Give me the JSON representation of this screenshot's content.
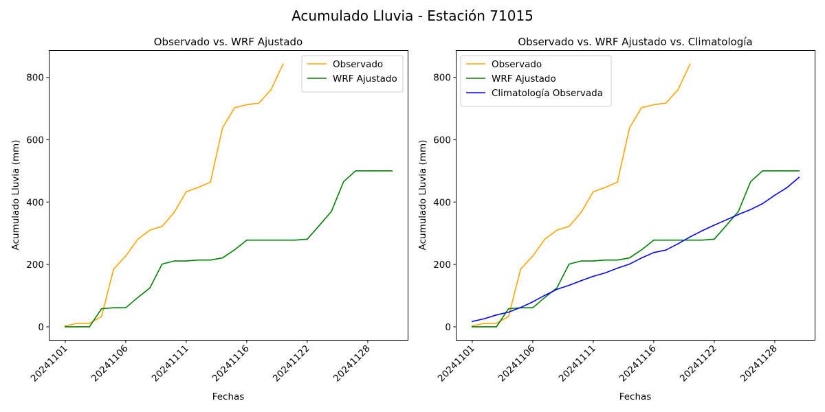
{
  "figure": {
    "suptitle": "Acumulado Lluvia - Estación 71015"
  },
  "chart_data": [
    {
      "type": "line",
      "title": "Observado vs. WRF Ajustado",
      "xlabel": "Fechas",
      "ylabel": "Acumulado Lluvia (mm)",
      "ylim": [
        -42,
        885
      ],
      "y_ticks": [
        0,
        200,
        400,
        600,
        800
      ],
      "x_tick_labels": [
        "20241101",
        "20241106",
        "20241111",
        "20241116",
        "20241122",
        "20241128"
      ],
      "x_tick_days": [
        1,
        6,
        11,
        16,
        21,
        26
      ],
      "x_range_days": [
        -0.3,
        29.3
      ],
      "legend_position": "upper right",
      "series": [
        {
          "name": "Observado",
          "color": "#FFA500",
          "x": [
            1,
            2,
            3,
            4,
            5,
            6,
            7,
            8,
            9,
            10,
            11,
            12,
            13,
            14,
            15,
            16,
            17,
            18,
            19
          ],
          "values": [
            3,
            11,
            11,
            33,
            185,
            227,
            281,
            310,
            322,
            367,
            433,
            447,
            464,
            638,
            703,
            712,
            717,
            760,
            842
          ]
        },
        {
          "name": "WRF Ajustado",
          "color": "#008000",
          "x": [
            1,
            2,
            3,
            4,
            5,
            6,
            7,
            8,
            9,
            10,
            11,
            12,
            13,
            14,
            15,
            16,
            17,
            18,
            19,
            20,
            21,
            22,
            23,
            24,
            25,
            26,
            27,
            28
          ],
          "values": [
            0,
            0,
            0,
            58,
            61,
            61,
            94,
            125,
            201,
            211,
            211,
            214,
            214,
            221,
            247,
            278,
            278,
            278,
            278,
            278,
            281,
            325,
            370,
            465,
            500,
            500,
            500,
            500
          ]
        }
      ]
    },
    {
      "type": "line",
      "title": "Observado vs. WRF Ajustado vs. Climatología",
      "xlabel": "Fechas",
      "ylabel": "Acumulado Lluvia (mm)",
      "ylim": [
        -42,
        885
      ],
      "y_ticks": [
        0,
        200,
        400,
        600,
        800
      ],
      "x_tick_labels": [
        "20241101",
        "20241106",
        "20241111",
        "20241116",
        "20241122",
        "20241128"
      ],
      "x_tick_days": [
        1,
        6,
        11,
        16,
        21,
        26
      ],
      "x_range_days": [
        -0.3,
        29.3
      ],
      "legend_position": "upper left",
      "series": [
        {
          "name": "Observado",
          "color": "#FFA500",
          "x": [
            1,
            2,
            3,
            4,
            5,
            6,
            7,
            8,
            9,
            10,
            11,
            12,
            13,
            14,
            15,
            16,
            17,
            18,
            19
          ],
          "values": [
            3,
            11,
            11,
            33,
            185,
            227,
            281,
            310,
            322,
            367,
            433,
            447,
            464,
            638,
            703,
            712,
            717,
            760,
            842
          ]
        },
        {
          "name": "WRF Ajustado",
          "color": "#008000",
          "x": [
            1,
            2,
            3,
            4,
            5,
            6,
            7,
            8,
            9,
            10,
            11,
            12,
            13,
            14,
            15,
            16,
            17,
            18,
            19,
            20,
            21,
            22,
            23,
            24,
            25,
            26,
            27,
            28
          ],
          "values": [
            0,
            0,
            0,
            58,
            61,
            61,
            94,
            125,
            201,
            211,
            211,
            214,
            214,
            221,
            247,
            278,
            278,
            278,
            278,
            278,
            281,
            325,
            370,
            465,
            500,
            500,
            500,
            500
          ]
        },
        {
          "name": "Climatología Observada",
          "color": "#0000FF",
          "x": [
            1,
            2,
            3,
            4,
            5,
            6,
            7,
            8,
            9,
            10,
            11,
            12,
            13,
            14,
            15,
            16,
            17,
            18,
            19,
            20,
            21,
            22,
            23,
            24,
            25,
            26,
            27,
            28
          ],
          "values": [
            17,
            26,
            38,
            47,
            62,
            80,
            101,
            120,
            133,
            148,
            162,
            173,
            188,
            201,
            221,
            238,
            246,
            266,
            288,
            308,
            326,
            343,
            360,
            376,
            395,
            422,
            446,
            479
          ]
        }
      ]
    }
  ]
}
